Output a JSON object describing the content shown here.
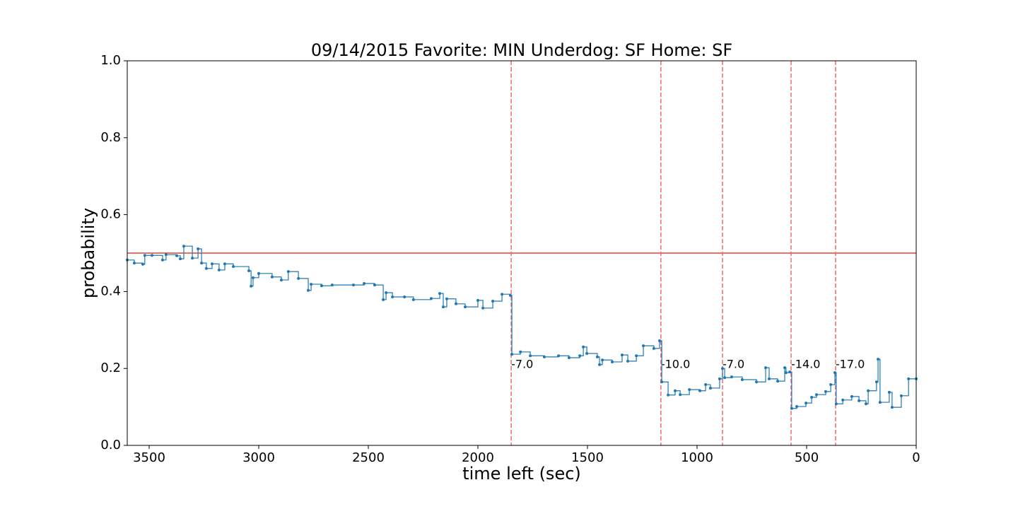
{
  "chart_data": {
    "type": "step",
    "title": "09/14/2015 Favorite: MIN Underdog: SF Home: SF",
    "x_label": "time left (sec)",
    "y_label": "probability",
    "xlim": [
      3600,
      0
    ],
    "ylim": [
      0,
      1
    ],
    "xticks": [
      3500,
      3000,
      2500,
      2000,
      1500,
      1000,
      500,
      0
    ],
    "yticks": [
      {
        "value": 0,
        "label": "0.0"
      },
      0.2,
      0.4,
      0.6,
      0.8,
      {
        "value": 1,
        "label": "1.0"
      }
    ],
    "series": [
      {
        "color": "#1f77b4",
        "x": [
          3600,
          3568,
          3529,
          3520,
          3487,
          3439,
          3423,
          3374,
          3358,
          3342,
          3303,
          3277,
          3261,
          3239,
          3213,
          3181,
          3155,
          3116,
          3045,
          3035,
          3026,
          3000,
          2939,
          2897,
          2865,
          2819,
          2774,
          2761,
          2713,
          2665,
          2568,
          2519,
          2471,
          2432,
          2419,
          2390,
          2335,
          2294,
          2213,
          2174,
          2158,
          2142,
          2100,
          2058,
          2000,
          1977,
          1932,
          1890,
          1852,
          1845,
          1806,
          1761,
          1697,
          1632,
          1584,
          1535,
          1519,
          1503,
          1455,
          1445,
          1432,
          1387,
          1342,
          1316,
          1277,
          1245,
          1197,
          1171,
          1161,
          1132,
          1100,
          1077,
          1035,
          987,
          961,
          939,
          897,
          884,
          874,
          842,
          794,
          729,
          687,
          671,
          632,
          600,
          594,
          577,
          568,
          545,
          503,
          477,
          455,
          413,
          390,
          371,
          365,
          335,
          294,
          261,
          229,
          219,
          181,
          174,
          165,
          123,
          110,
          68,
          35,
          0
        ],
        "values": [
          0.482,
          0.474,
          0.471,
          0.494,
          0.494,
          0.482,
          0.496,
          0.493,
          0.485,
          0.518,
          0.487,
          0.511,
          0.474,
          0.46,
          0.472,
          0.456,
          0.472,
          0.465,
          0.454,
          0.414,
          0.436,
          0.447,
          0.438,
          0.43,
          0.452,
          0.434,
          0.403,
          0.419,
          0.415,
          0.417,
          0.417,
          0.421,
          0.417,
          0.379,
          0.397,
          0.386,
          0.386,
          0.379,
          0.382,
          0.395,
          0.36,
          0.381,
          0.368,
          0.36,
          0.377,
          0.357,
          0.375,
          0.393,
          0.39,
          0.237,
          0.243,
          0.233,
          0.23,
          0.233,
          0.228,
          0.233,
          0.256,
          0.239,
          0.23,
          0.21,
          0.222,
          0.217,
          0.235,
          0.219,
          0.233,
          0.259,
          0.252,
          0.272,
          0.165,
          0.131,
          0.142,
          0.132,
          0.145,
          0.142,
          0.158,
          0.149,
          0.173,
          0.2,
          0.176,
          0.178,
          0.171,
          0.165,
          0.202,
          0.173,
          0.167,
          0.202,
          0.189,
          0.191,
          0.096,
          0.101,
          0.11,
          0.125,
          0.132,
          0.14,
          0.158,
          0.189,
          0.108,
          0.118,
          0.127,
          0.116,
          0.108,
          0.142,
          0.165,
          0.224,
          0.112,
          0.138,
          0.099,
          0.129,
          0.173,
          0.173
        ]
      }
    ],
    "reference_line": {
      "y": 0.5,
      "color": "#e8413a"
    },
    "events": [
      {
        "x": 1848,
        "label": "-7.0"
      },
      {
        "x": 1165,
        "label": "-10.0"
      },
      {
        "x": 884,
        "label": "-7.0"
      },
      {
        "x": 571,
        "label": "-14.0"
      },
      {
        "x": 368,
        "label": "-17.0"
      }
    ],
    "event_color": "#f26b6b"
  }
}
